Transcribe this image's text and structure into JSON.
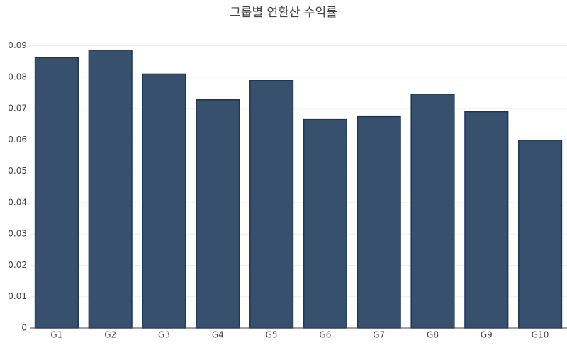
{
  "chart_data": {
    "type": "bar",
    "title": "그룹별 연환산 수익률",
    "categories": [
      "G1",
      "G2",
      "G3",
      "G4",
      "G5",
      "G6",
      "G7",
      "G8",
      "G9",
      "G10"
    ],
    "values": [
      0.0862,
      0.0886,
      0.081,
      0.0728,
      0.0789,
      0.0665,
      0.0674,
      0.0746,
      0.069,
      0.0599
    ],
    "color": "#36506d",
    "ylim": [
      0,
      0.0933
    ],
    "yticks": [
      0,
      0.01,
      0.02,
      0.03,
      0.04,
      0.05,
      0.06,
      0.07,
      0.08,
      0.09
    ],
    "grid": true
  }
}
